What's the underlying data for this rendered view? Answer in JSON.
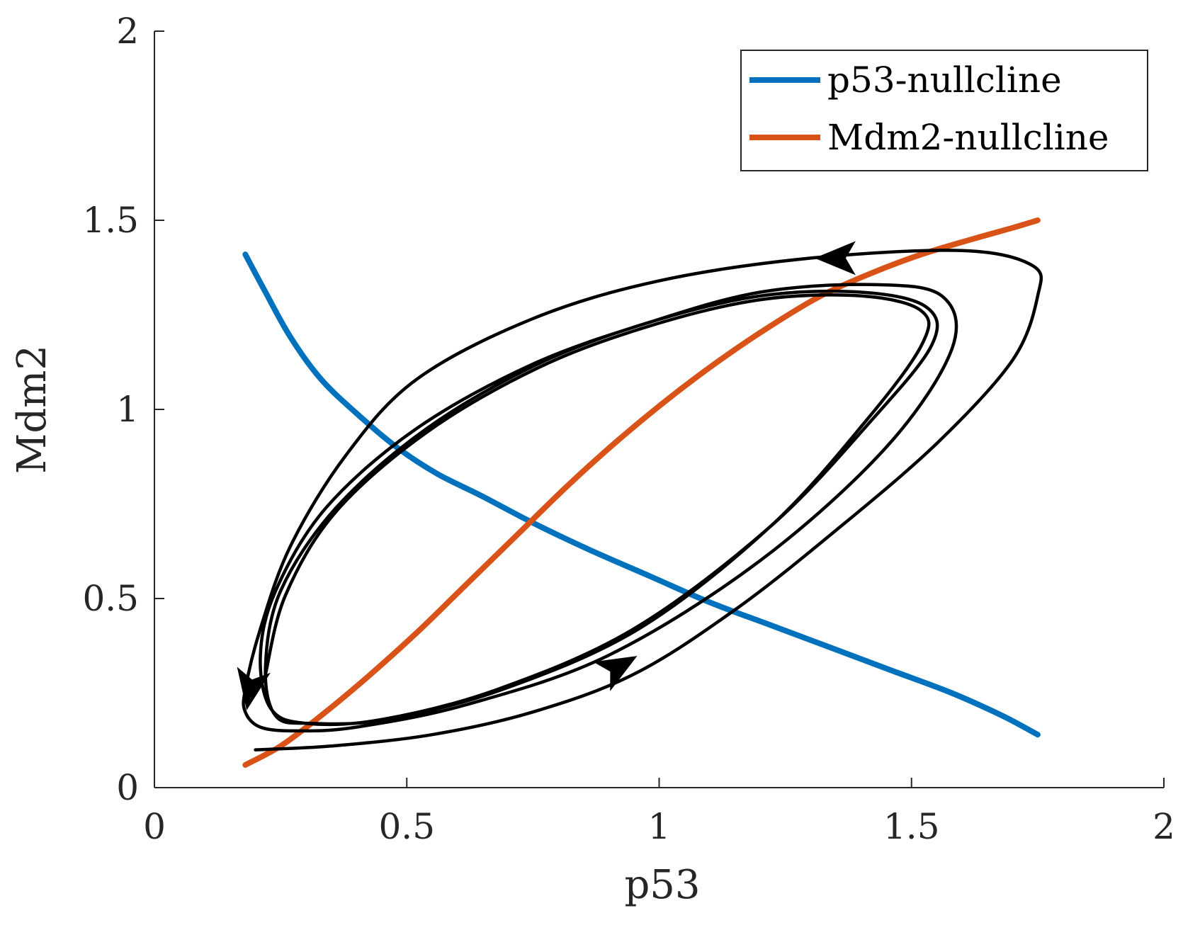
{
  "chart_data": {
    "type": "line",
    "title": "",
    "xlabel": "p53",
    "ylabel": "Mdm2",
    "xlim": [
      0,
      2
    ],
    "ylim": [
      0,
      2
    ],
    "xticks": [
      0,
      0.5,
      1,
      1.5,
      2
    ],
    "xtick_labels": [
      "0",
      "0.5",
      "1",
      "1.5",
      "2"
    ],
    "yticks": [
      0,
      0.5,
      1,
      1.5,
      2
    ],
    "ytick_labels": [
      "0",
      "0.5",
      "1",
      "1.5",
      "2"
    ],
    "grid": false,
    "legend_position": "top-right",
    "series": [
      {
        "name": "p53-nullcline",
        "color": "#0072BD",
        "x": [
          0.18,
          0.22,
          0.27,
          0.33,
          0.4,
          0.48,
          0.56,
          0.65,
          0.75,
          0.86,
          0.98,
          1.1,
          1.22,
          1.34,
          1.46,
          1.58,
          1.68,
          1.75
        ],
        "y": [
          1.41,
          1.31,
          1.19,
          1.08,
          0.99,
          0.9,
          0.83,
          0.77,
          0.7,
          0.63,
          0.56,
          0.49,
          0.43,
          0.37,
          0.31,
          0.25,
          0.19,
          0.14
        ]
      },
      {
        "name": "Mdm2-nullcline",
        "color": "#D95319",
        "x": [
          0.18,
          0.25,
          0.33,
          0.42,
          0.52,
          0.62,
          0.72,
          0.82,
          0.92,
          1.02,
          1.12,
          1.22,
          1.32,
          1.42,
          1.52,
          1.62,
          1.7,
          1.75
        ],
        "y": [
          0.06,
          0.11,
          0.19,
          0.29,
          0.41,
          0.54,
          0.67,
          0.8,
          0.92,
          1.03,
          1.13,
          1.22,
          1.3,
          1.36,
          1.41,
          1.45,
          1.48,
          1.5
        ]
      },
      {
        "name": "trajectory",
        "color": "#000000",
        "x": [
          0.2,
          0.35,
          0.55,
          0.75,
          0.95,
          1.15,
          1.35,
          1.55,
          1.7,
          1.75,
          1.74,
          1.6,
          1.3,
          1.0,
          0.75,
          0.52,
          0.38,
          0.27,
          0.21,
          0.18,
          0.18,
          0.21,
          0.28,
          0.4,
          0.62,
          0.9,
          1.2,
          1.45,
          1.58,
          1.56,
          1.42,
          1.2,
          0.98,
          0.75,
          0.52,
          0.34,
          0.24,
          0.21,
          0.23,
          0.3,
          0.45,
          0.68,
          0.95,
          1.22,
          1.42,
          1.54,
          1.53,
          1.4,
          1.2,
          0.98,
          0.76,
          0.54,
          0.36,
          0.25,
          0.22,
          0.24,
          0.31,
          0.46,
          0.69,
          0.96,
          1.22,
          1.41,
          1.52,
          1.52,
          1.4,
          1.2,
          0.98,
          0.76,
          0.54,
          0.36,
          0.26,
          0.22
        ],
        "y": [
          0.1,
          0.11,
          0.14,
          0.2,
          0.3,
          0.47,
          0.68,
          0.91,
          1.13,
          1.3,
          1.38,
          1.42,
          1.4,
          1.34,
          1.24,
          1.08,
          0.88,
          0.64,
          0.42,
          0.26,
          0.2,
          0.16,
          0.15,
          0.16,
          0.22,
          0.35,
          0.6,
          0.9,
          1.16,
          1.3,
          1.33,
          1.31,
          1.23,
          1.12,
          0.95,
          0.74,
          0.52,
          0.35,
          0.21,
          0.17,
          0.18,
          0.26,
          0.42,
          0.69,
          0.97,
          1.17,
          1.27,
          1.31,
          1.3,
          1.23,
          1.12,
          0.95,
          0.74,
          0.52,
          0.32,
          0.19,
          0.17,
          0.18,
          0.26,
          0.42,
          0.69,
          0.97,
          1.17,
          1.26,
          1.3,
          1.29,
          1.22,
          1.11,
          0.94,
          0.73,
          0.51,
          0.3
        ]
      }
    ],
    "annotations": [
      {
        "name": "arrow-upper",
        "x": 1.35,
        "y": 1.4,
        "direction": "left"
      },
      {
        "name": "arrow-left",
        "x": 0.19,
        "y": 0.26,
        "direction": "down"
      },
      {
        "name": "arrow-lower",
        "x": 0.92,
        "y": 0.32,
        "direction": "up-right"
      }
    ]
  }
}
